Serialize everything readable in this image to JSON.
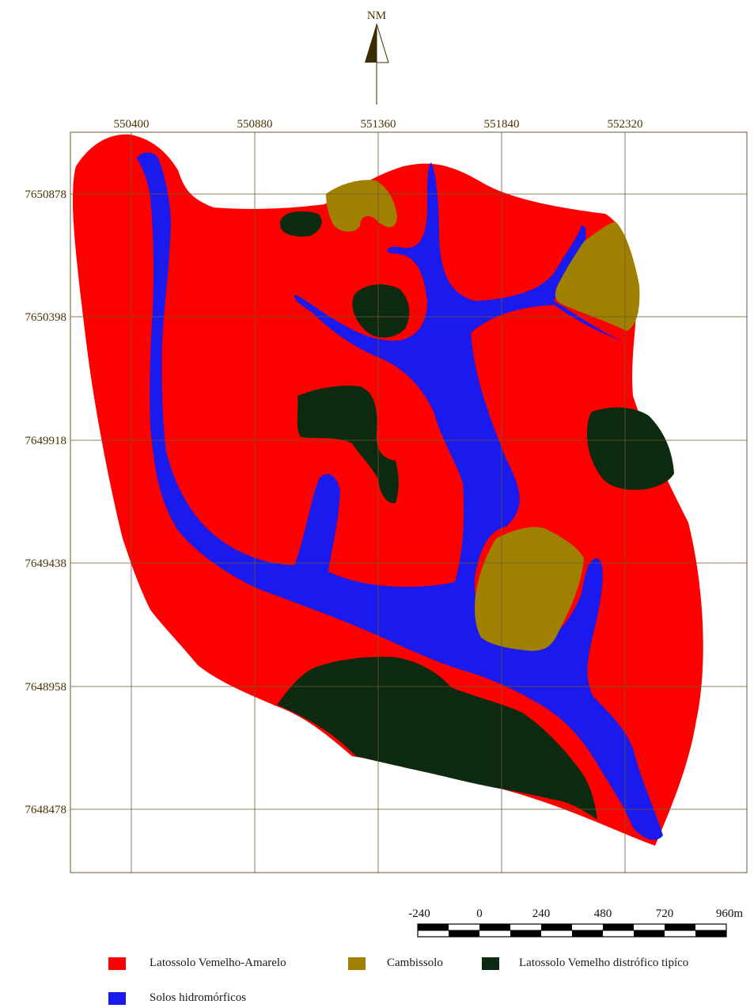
{
  "north": {
    "label": "NM"
  },
  "grid": {
    "x_labels": [
      "550400",
      "550880",
      "551360",
      "551840",
      "552320"
    ],
    "y_labels": [
      "7650878",
      "7650398",
      "7649918",
      "7649438",
      "7648958",
      "7648478"
    ]
  },
  "scale": {
    "labels": [
      "-240",
      "0",
      "240",
      "480",
      "720",
      "960m"
    ]
  },
  "colors": {
    "latossolo_vermelho_amarelo": "#ff0000",
    "cambissolo": "#a08000",
    "latossolo_vermelho_distrofico": "#0c2a10",
    "solos_hidromorficos": "#1a1aee",
    "grid": "#6b5a2e",
    "text": "#4a3500"
  },
  "legend": [
    {
      "label": "Latossolo Vemelho-Amarelo",
      "color": "#ff0000"
    },
    {
      "label": "Cambissolo",
      "color": "#a08000"
    },
    {
      "label": "Latossolo Vemelho distrófico tipíco",
      "color": "#0c2a10"
    },
    {
      "label": "Solos hidromórficos",
      "color": "#1a1aee"
    }
  ]
}
